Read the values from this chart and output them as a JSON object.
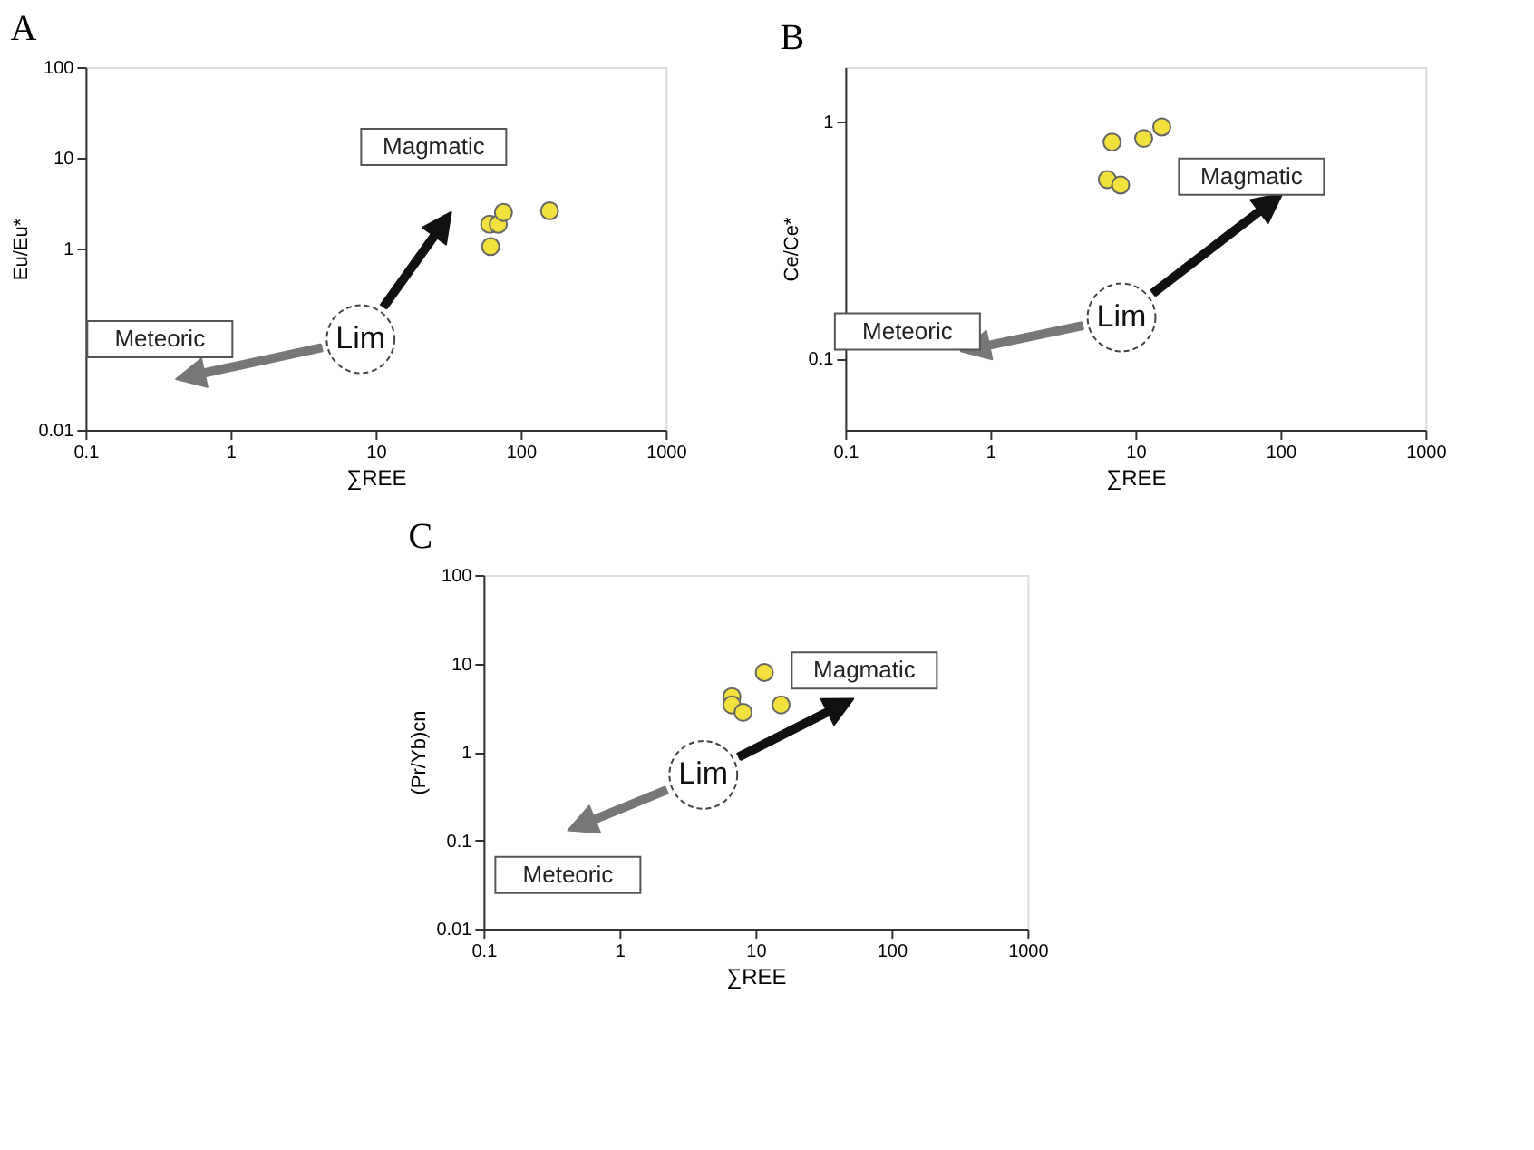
{
  "chart_data": [
    {
      "type": "scatter",
      "title": "A",
      "xlabel": "∑REE",
      "ylabel": "Eu/Eu*",
      "marker": "circle",
      "log": "xy",
      "xlim": [
        0.1,
        1000
      ],
      "xticks": [
        0.1,
        1,
        10,
        100,
        1000
      ],
      "ylim": [
        0.01,
        100
      ],
      "yticks": [
        0.01,
        1,
        10,
        100
      ],
      "series": [
        {
          "color": "#f2e03c",
          "x": [
            61,
            70,
            76,
            62,
            158
          ],
          "values": [
            1.85,
            1.85,
            2.5,
            1.05,
            2.6
          ]
        }
      ],
      "annotations": [
        "Lim",
        "Magmatic",
        "Meteoric"
      ]
    },
    {
      "type": "scatter",
      "title": "B",
      "xlabel": "∑REE",
      "ylabel": "Ce/Ce*",
      "marker": "circle",
      "log": "xy",
      "xlim": [
        0.1,
        1000
      ],
      "xticks": [
        0.1,
        1,
        10,
        100,
        1000
      ],
      "ylim": [
        0.05,
        1.7
      ],
      "yticks": [
        0.1,
        1
      ],
      "series": [
        {
          "color": "#f2e03c",
          "x": [
            6.9,
            11.4,
            15.2,
            6.4,
            7.9
          ],
          "values": [
            0.82,
            0.85,
            0.95,
            0.57,
            0.54
          ]
        }
      ],
      "annotations": [
        "Lim",
        "Magmatic",
        "Meteoric"
      ]
    },
    {
      "type": "scatter",
      "title": "C",
      "xlabel": "∑REE",
      "ylabel": "(Pr/Yb)cn",
      "marker": "circle",
      "log": "xy",
      "xlim": [
        0.1,
        1000
      ],
      "xticks": [
        0.1,
        1,
        10,
        100,
        1000
      ],
      "ylim": [
        0.01,
        100
      ],
      "yticks": [
        0.01,
        0.1,
        1,
        10,
        100
      ],
      "series": [
        {
          "color": "#f2e03c",
          "x": [
            11.6,
            6.7,
            6.7,
            8.1,
            15.4
          ],
          "values": [
            7.9,
            4.2,
            3.4,
            2.8,
            3.4
          ]
        }
      ],
      "annotations": [
        "Lim",
        "Magmatic",
        "Meteoric"
      ]
    }
  ]
}
